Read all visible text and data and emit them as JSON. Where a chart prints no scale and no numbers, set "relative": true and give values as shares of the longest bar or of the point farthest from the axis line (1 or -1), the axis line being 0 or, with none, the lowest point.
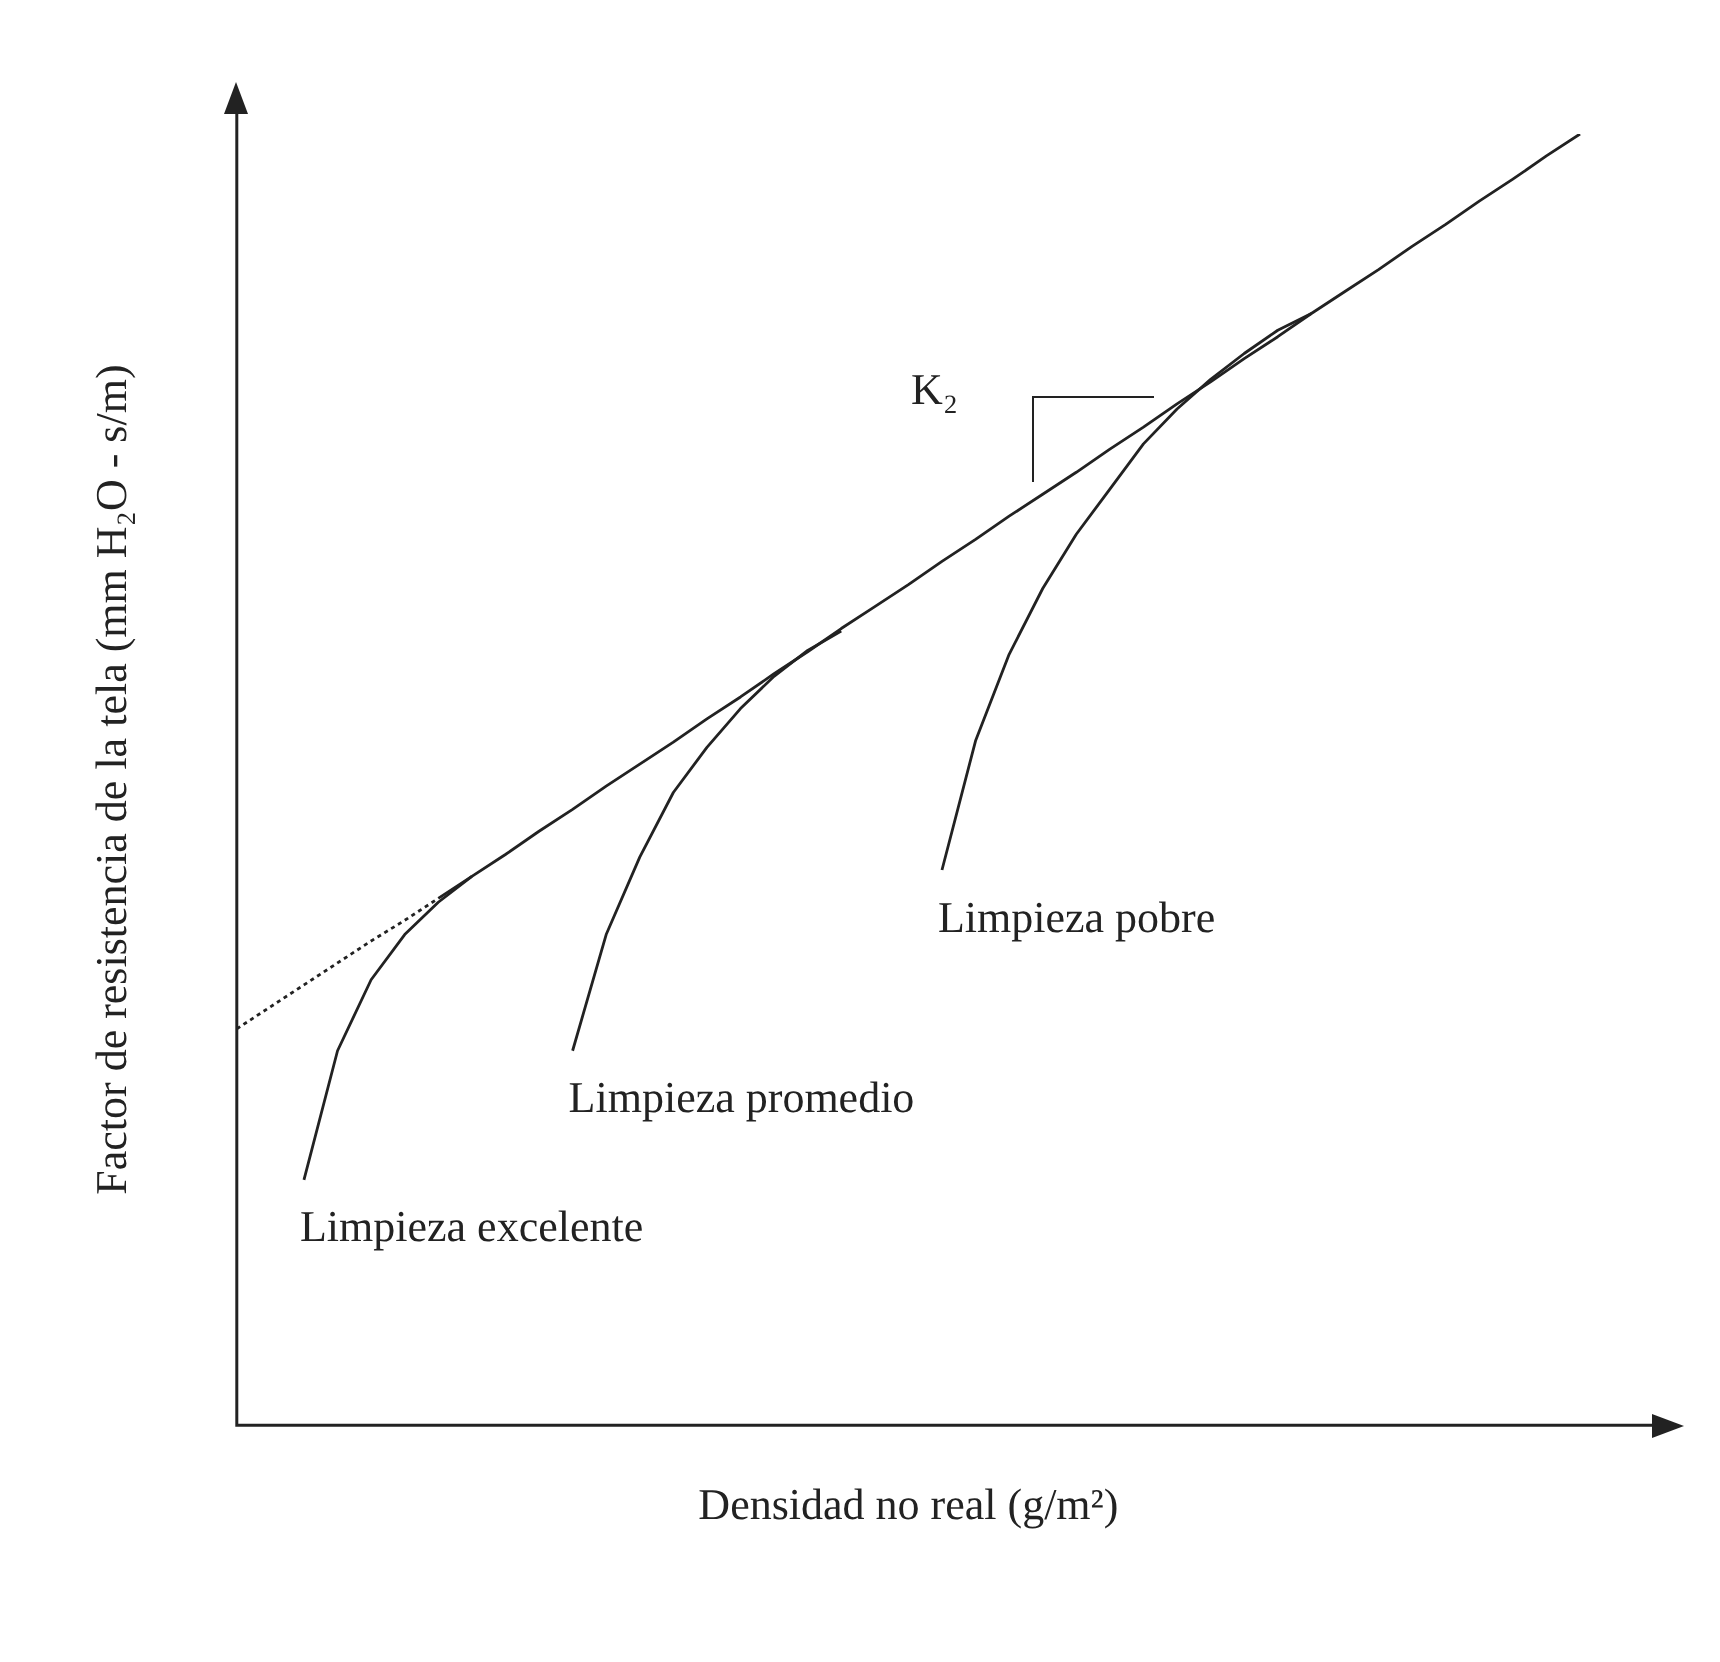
{
  "chart_data": {
    "type": "line",
    "relative": true,
    "marker": "none",
    "xlabel": "Densidad no real (g/m²)",
    "ylabel": "Factor de resistencia de la tela (mm H₂O - s/m)",
    "categories": [
      null,
      null,
      null,
      null,
      null,
      null,
      null,
      null,
      null,
      null,
      null,
      null,
      null,
      null,
      null,
      null,
      null,
      null,
      null,
      null,
      null,
      null,
      null,
      null,
      null,
      null,
      null,
      null,
      null,
      null,
      null,
      null,
      null,
      null,
      null,
      null,
      null,
      null,
      null,
      null,
      null
    ],
    "series": [
      {
        "color": "#222222",
        "line_style": "dotted",
        "values": [
          0.307,
          0.324,
          0.341,
          0.358,
          0.375,
          0.391,
          0.408,
          null,
          null,
          null,
          null,
          null,
          null,
          null,
          null,
          null,
          null,
          null,
          null,
          null,
          null,
          null,
          null,
          null,
          null,
          null,
          null,
          null,
          null,
          null,
          null,
          null,
          null,
          null,
          null,
          null,
          null,
          null,
          null,
          null,
          null
        ]
      },
      {
        "color": "#222222",
        "line_style": "solid",
        "values": [
          null,
          null,
          null,
          null,
          null,
          null,
          0.408,
          0.425,
          0.442,
          0.46,
          0.477,
          0.495,
          0.512,
          0.529,
          0.547,
          0.564,
          0.582,
          0.599,
          0.617,
          0.634,
          0.651,
          0.669,
          0.686,
          0.704,
          0.721,
          0.738,
          0.756,
          0.773,
          0.791,
          0.808,
          0.826,
          0.843,
          0.861,
          0.878,
          0.895,
          0.913,
          0.93,
          0.948,
          0.965,
          0.983,
          1.0
        ]
      },
      {
        "name": "Limpieza excelente",
        "color": "#222222",
        "line_style": "solid",
        "values": [
          null,
          null,
          0.19,
          0.29,
          0.345,
          0.38,
          0.405,
          0.425,
          null,
          null,
          null,
          null,
          null,
          null,
          null,
          null,
          null,
          null,
          null,
          null,
          null,
          null,
          null,
          null,
          null,
          null,
          null,
          null,
          null,
          null,
          null,
          null,
          null,
          null,
          null,
          null,
          null,
          null,
          null,
          null,
          null
        ]
      },
      {
        "name": "Limpieza promedio",
        "color": "#222222",
        "line_style": "solid",
        "values": [
          null,
          null,
          null,
          null,
          null,
          null,
          null,
          null,
          null,
          null,
          0.29,
          0.38,
          0.44,
          0.49,
          0.525,
          0.555,
          0.58,
          0.6,
          0.615,
          null,
          null,
          null,
          null,
          null,
          null,
          null,
          null,
          null,
          null,
          null,
          null,
          null,
          null,
          null,
          null,
          null,
          null,
          null,
          null,
          null,
          null
        ]
      },
      {
        "name": "Limpieza pobre",
        "color": "#222222",
        "line_style": "solid",
        "values": [
          null,
          null,
          null,
          null,
          null,
          null,
          null,
          null,
          null,
          null,
          null,
          null,
          null,
          null,
          null,
          null,
          null,
          null,
          null,
          null,
          null,
          0.43,
          0.53,
          0.597,
          0.648,
          0.69,
          0.725,
          0.76,
          0.787,
          0.81,
          0.83,
          0.848,
          0.861,
          null,
          null,
          null,
          null,
          null,
          null,
          null,
          null
        ]
      }
    ],
    "annotations": [
      "K₂"
    ]
  }
}
